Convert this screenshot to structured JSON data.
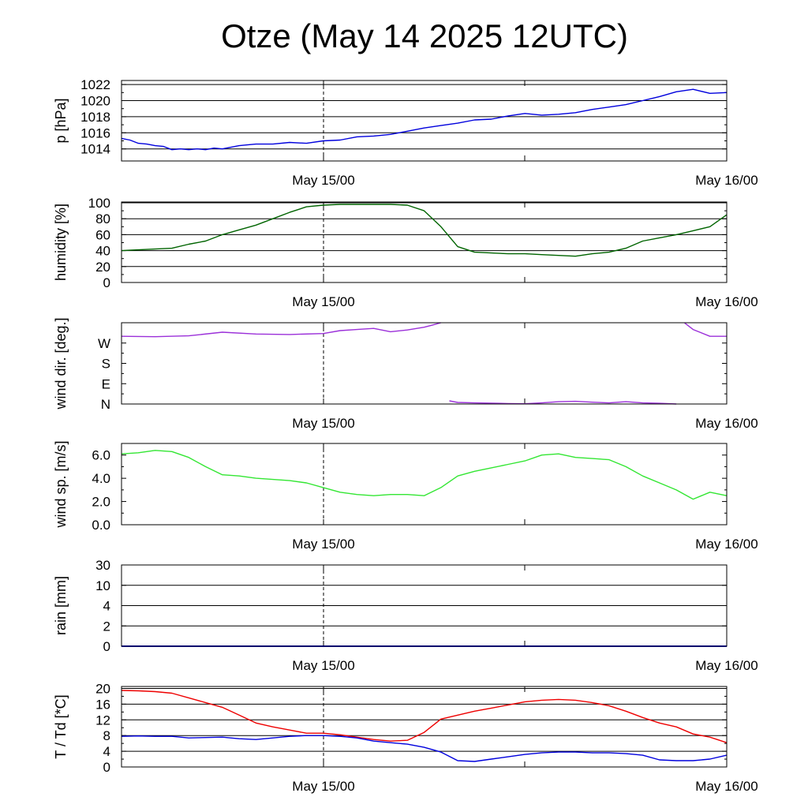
{
  "title": "Otze (May 14 2025 12UTC)",
  "colors": {
    "pressure": "#0000dd",
    "humidity": "#006400",
    "wind_dir": "#9b30d9",
    "wind_speed": "#33e633",
    "rain": "#0000dd",
    "temperature": "#ee0000",
    "dewpoint": "#0000dd"
  },
  "chart_data": [
    {
      "type": "line",
      "key": "pressure",
      "ylabel": "p [hPa]",
      "xticks": [
        "May 15/00",
        "May 16/00"
      ],
      "x_range_hours": [
        0,
        36
      ],
      "ylim": [
        1012.5,
        1022.5
      ],
      "yticks": [
        1014,
        1016,
        1018,
        1020,
        1022
      ],
      "ytick_labels": [
        "1014",
        "1016",
        "1018",
        "1020",
        "1022"
      ],
      "grid": true,
      "series": [
        {
          "x": [
            0,
            0.5,
            1,
            1.5,
            2,
            2.5,
            3,
            3.5,
            4,
            4.5,
            5,
            5.5,
            6,
            7,
            8,
            9,
            10,
            11,
            12,
            13,
            14,
            15,
            16,
            17,
            18,
            19,
            20,
            21,
            22,
            23,
            24,
            25,
            26,
            27,
            28,
            29,
            30,
            31,
            32,
            33,
            34,
            35,
            36
          ],
          "y": [
            1015.3,
            1015.1,
            1014.7,
            1014.6,
            1014.4,
            1014.3,
            1013.9,
            1014.0,
            1013.9,
            1014.0,
            1013.9,
            1014.1,
            1014.0,
            1014.4,
            1014.6,
            1014.6,
            1014.8,
            1014.7,
            1015.0,
            1015.1,
            1015.5,
            1015.6,
            1015.8,
            1016.2,
            1016.6,
            1016.9,
            1017.2,
            1017.6,
            1017.7,
            1018.1,
            1018.4,
            1018.2,
            1018.3,
            1018.5,
            1018.9,
            1019.2,
            1019.5,
            1020.0,
            1020.5,
            1021.1,
            1021.4,
            1020.9,
            1021.0
          ]
        }
      ]
    },
    {
      "type": "line",
      "key": "humidity",
      "ylabel": "humidity [%]",
      "xticks": [
        "May 15/00",
        "May 16/00"
      ],
      "x_range_hours": [
        0,
        36
      ],
      "ylim": [
        0,
        101
      ],
      "yticks": [
        0,
        20,
        40,
        60,
        80,
        100
      ],
      "ytick_labels": [
        "0",
        "20",
        "40",
        "60",
        "80",
        "100"
      ],
      "grid": true,
      "series": [
        {
          "x": [
            0,
            1,
            2,
            3,
            4,
            5,
            6,
            7,
            8,
            9,
            10,
            11,
            12,
            13,
            14,
            15,
            16,
            17,
            18,
            19,
            20,
            21,
            22,
            23,
            24,
            25,
            26,
            27,
            28,
            29,
            30,
            31,
            32,
            33,
            34,
            35,
            36
          ],
          "y": [
            40,
            41,
            42,
            43,
            48,
            52,
            60,
            66,
            72,
            80,
            88,
            95,
            97,
            98,
            98,
            98,
            98,
            97,
            90,
            70,
            45,
            38,
            37,
            36,
            36,
            35,
            34,
            33,
            36,
            38,
            43,
            52,
            56,
            60,
            65,
            70,
            85
          ]
        }
      ]
    },
    {
      "type": "line",
      "key": "wind_dir",
      "ylabel": "wind dir. [deg.]",
      "xticks": [
        "May 15/00",
        "May 16/00"
      ],
      "x_range_hours": [
        0,
        36
      ],
      "ylim": [
        0,
        360
      ],
      "yticks": [
        0,
        90,
        180,
        270
      ],
      "ytick_labels": [
        "N",
        "E",
        "S",
        "W"
      ],
      "grid": false,
      "series": [
        {
          "x": [
            0,
            2,
            4,
            6,
            8,
            10,
            12,
            13,
            14,
            15,
            16,
            17,
            18,
            18.5,
            19,
            19.5,
            20,
            21,
            22,
            23,
            24,
            25,
            26,
            27,
            28,
            29,
            30,
            31,
            32,
            33,
            33.5,
            34,
            35,
            36
          ],
          "y": [
            300,
            298,
            302,
            318,
            310,
            308,
            312,
            325,
            330,
            335,
            320,
            328,
            340,
            350,
            360,
            14,
            7,
            5,
            4,
            2,
            1,
            5,
            10,
            12,
            8,
            5,
            10,
            5,
            3,
            0,
            359,
            330,
            300,
            300
          ]
        }
      ]
    },
    {
      "type": "line",
      "key": "wind_speed",
      "ylabel": "wind sp. [m/s]",
      "xticks": [
        "May 15/00",
        "May 16/00"
      ],
      "x_range_hours": [
        0,
        36
      ],
      "ylim": [
        0,
        7
      ],
      "yticks": [
        0,
        2,
        4,
        6
      ],
      "ytick_labels": [
        "0.0",
        "2.0",
        "4.0",
        "6.0"
      ],
      "grid": false,
      "series": [
        {
          "x": [
            0,
            1,
            2,
            3,
            4,
            5,
            6,
            7,
            8,
            9,
            10,
            11,
            12,
            13,
            14,
            15,
            16,
            17,
            18,
            19,
            20,
            21,
            22,
            23,
            24,
            25,
            26,
            27,
            28,
            29,
            30,
            31,
            32,
            33,
            34,
            35,
            36
          ],
          "y": [
            6.1,
            6.2,
            6.4,
            6.3,
            5.8,
            5.0,
            4.3,
            4.2,
            4.0,
            3.9,
            3.8,
            3.6,
            3.2,
            2.8,
            2.6,
            2.5,
            2.6,
            2.6,
            2.5,
            3.2,
            4.2,
            4.6,
            4.9,
            5.2,
            5.5,
            6.0,
            6.1,
            5.8,
            5.7,
            5.6,
            5.0,
            4.2,
            3.6,
            3.0,
            2.2,
            2.8,
            2.5
          ]
        }
      ]
    },
    {
      "type": "line",
      "key": "rain",
      "ylabel": "rain [mm]",
      "xticks": [
        "May 15/00",
        "May 16/00"
      ],
      "x_range_hours": [
        0,
        36
      ],
      "ylim": [
        0,
        4
      ],
      "yticks": [
        0,
        1,
        2,
        3,
        4
      ],
      "ytick_labels": [
        "0",
        "2",
        "4",
        "10",
        "30"
      ],
      "grid": true,
      "series": [
        {
          "x": [
            0,
            36
          ],
          "y": [
            0,
            0
          ]
        }
      ]
    },
    {
      "type": "line",
      "key": "temp",
      "ylabel": "T / Td [*C]",
      "xticks": [
        "May 15/00",
        "May 16/00"
      ],
      "x_range_hours": [
        0,
        36
      ],
      "ylim": [
        0,
        20.5
      ],
      "yticks": [
        0,
        4,
        8,
        12,
        16,
        20
      ],
      "ytick_labels": [
        "0",
        "4",
        "8",
        "12",
        "16",
        "20"
      ],
      "grid": true,
      "series": [
        {
          "x": [
            0,
            1,
            2,
            3,
            4,
            5,
            6,
            7,
            8,
            9,
            10,
            11,
            12,
            13,
            14,
            15,
            16,
            17,
            18,
            19,
            20,
            21,
            22,
            23,
            24,
            25,
            26,
            27,
            28,
            29,
            30,
            31,
            32,
            33,
            34,
            35,
            36
          ],
          "y": [
            19.5,
            19.4,
            19.2,
            18.8,
            17.6,
            16.4,
            15.2,
            13.2,
            11.2,
            10.2,
            9.4,
            8.6,
            8.6,
            8.2,
            7.6,
            7.0,
            6.6,
            6.8,
            8.8,
            12.2,
            13.2,
            14.2,
            15.0,
            15.8,
            16.6,
            17.0,
            17.2,
            17.0,
            16.4,
            15.6,
            14.2,
            12.6,
            11.2,
            10.2,
            8.4,
            7.6,
            6.2
          ]
        },
        {
          "x": [
            0,
            1,
            2,
            3,
            4,
            5,
            6,
            7,
            8,
            9,
            10,
            11,
            12,
            13,
            14,
            15,
            16,
            17,
            18,
            19,
            20,
            21,
            22,
            23,
            24,
            25,
            26,
            27,
            28,
            29,
            30,
            31,
            32,
            33,
            34,
            35,
            36
          ],
          "y": [
            7.8,
            7.9,
            7.8,
            7.8,
            7.4,
            7.5,
            7.6,
            7.2,
            7.0,
            7.4,
            7.8,
            8.0,
            8.0,
            7.8,
            7.4,
            6.6,
            6.2,
            5.8,
            5.0,
            3.8,
            1.6,
            1.4,
            2.0,
            2.6,
            3.2,
            3.6,
            3.8,
            3.8,
            3.6,
            3.6,
            3.4,
            3.0,
            1.8,
            1.6,
            1.6,
            2.0,
            3.0
          ]
        }
      ]
    }
  ]
}
